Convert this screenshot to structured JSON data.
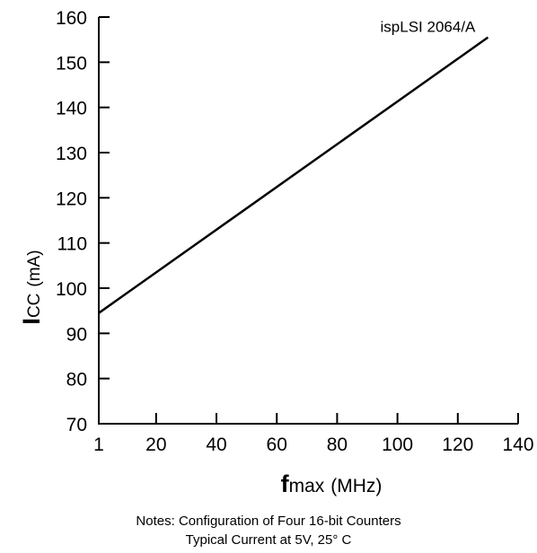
{
  "chart_data": {
    "type": "line",
    "xlim": [
      1,
      140
    ],
    "ylim": [
      70,
      160
    ],
    "x_ticks": [
      1,
      20,
      40,
      60,
      80,
      100,
      120,
      140
    ],
    "y_ticks": [
      70,
      80,
      90,
      100,
      110,
      120,
      130,
      140,
      150,
      160
    ],
    "x_tick_labels": [
      "1",
      "20",
      "40",
      "60",
      "80",
      "100",
      "120",
      "140"
    ],
    "y_tick_labels": [
      "70",
      "80",
      "90",
      "100",
      "110",
      "120",
      "130",
      "140",
      "150",
      "160"
    ],
    "xlabel": {
      "symbol": "f",
      "subscript": "max",
      "unit": "(MHz)"
    },
    "ylabel": {
      "symbol": "I",
      "subscript": "CC",
      "unit": "(mA)"
    },
    "grid": false,
    "series": [
      {
        "name": "ispLSI 2064/A",
        "x": [
          1,
          130
        ],
        "y": [
          94.5,
          155.5
        ]
      }
    ]
  },
  "notes": {
    "line1": "Notes: Configuration of Four 16-bit Counters",
    "line2": "Typical Current at 5V, 25° C"
  }
}
